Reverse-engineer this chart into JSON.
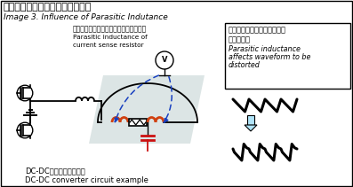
{
  "title_jp": "図３．寄生インダクタンスの影響",
  "title_en": "Image 3. Influence of Parasitic Indutance",
  "label_jp": "電流検出用抵抗器の寄生インダクタンス",
  "label_en1": "Parasitic inductance of",
  "label_en2": "current sense resistor",
  "box_line1": "寄生インダクタンスの影響で",
  "box_line2": "波形は歪む",
  "box_line3": "Parasitic inductance",
  "box_line4": "affects waveform to be",
  "box_line5": "distorted",
  "bottom_jp": "DC-DCコンバータ回路例",
  "bottom_en": "DC-DC converter circuit example",
  "bg_color": "#ffffff",
  "border_color": "#000000",
  "box_border": "#000000",
  "circuit_color": "#000000",
  "coil_color": "#d04010",
  "arrow_color": "#1840c0",
  "highlight_color": "#c0d0d0",
  "cap_color": "#cc1010",
  "arrow_fill": "#b0e4f8"
}
